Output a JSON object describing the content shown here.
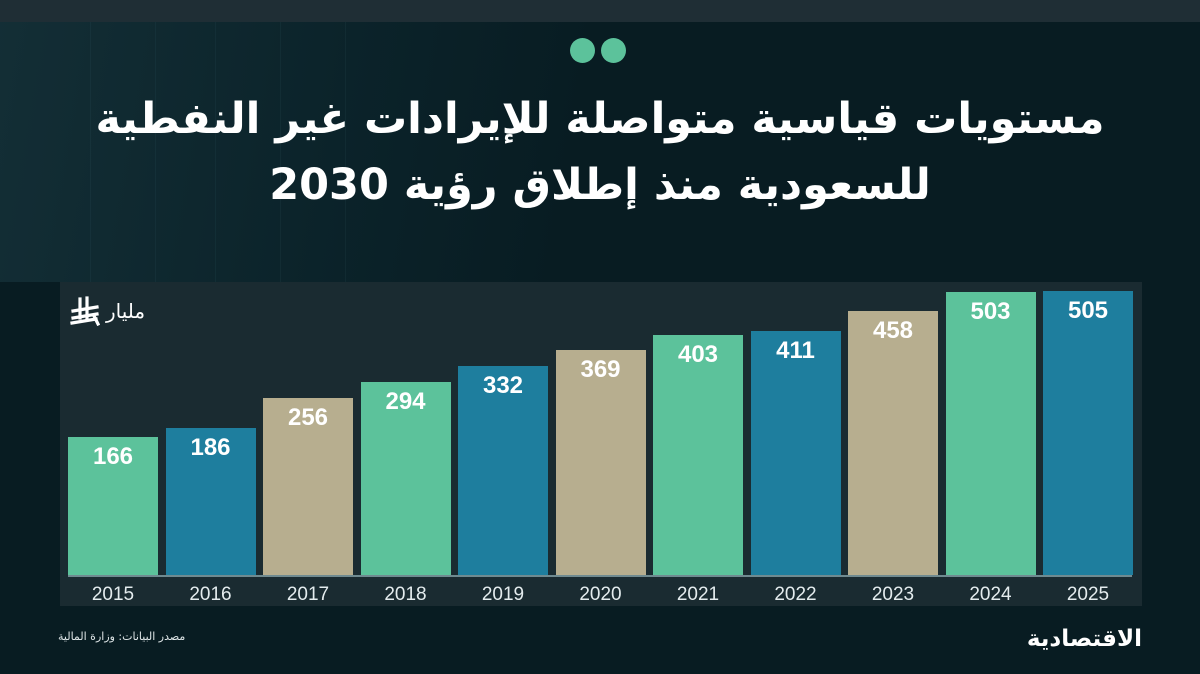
{
  "header": {
    "title_line1": "مستويات قياسية متواصلة للإيرادات غير النفطية",
    "title_line2": "للسعودية منذ إطلاق رؤية 2030",
    "dots_color": "#5cc29b"
  },
  "unit": {
    "label": "مليار",
    "currency_icon": "riyal-icon"
  },
  "footer": {
    "source": "مصدر البيانات: وزارة المالية",
    "brand": "الاقتصادية"
  },
  "colors": {
    "background": "#081c22",
    "panel": "#1a2b31",
    "green": "#5cc29b",
    "blue": "#1e7e9e",
    "tan": "#b7ae8f"
  },
  "chart_data": {
    "type": "bar",
    "title": "مستويات قياسية متواصلة للإيرادات غير النفطية للسعودية منذ إطلاق رؤية 2030",
    "xlabel": "",
    "ylabel": "مليار ريال",
    "categories": [
      "2015",
      "2016",
      "2017",
      "2018",
      "2019",
      "2020",
      "2021",
      "2022",
      "2023",
      "2024",
      "2025"
    ],
    "values": [
      166,
      186,
      256,
      294,
      332,
      369,
      403,
      411,
      458,
      503,
      505
    ],
    "bar_colors": [
      "#5cc29b",
      "#1e7e9e",
      "#b7ae8f",
      "#5cc29b",
      "#1e7e9e",
      "#b7ae8f",
      "#5cc29b",
      "#1e7e9e",
      "#b7ae8f",
      "#5cc29b",
      "#1e7e9e"
    ],
    "data_labels": [
      "166",
      "186",
      "256",
      "294",
      "332",
      "369",
      "403",
      "411",
      "458",
      "503",
      "505"
    ],
    "grid": false,
    "legend": "none",
    "yaxis_visible": false
  }
}
